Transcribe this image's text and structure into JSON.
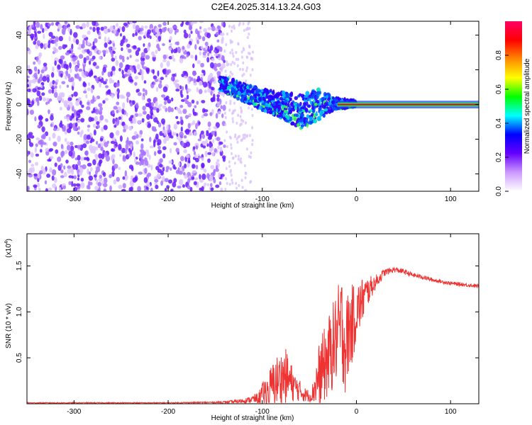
{
  "title": "C2E4.2025.314.13.24.G03",
  "colors": {
    "snr_line": "#ee3333",
    "background": "#ffffff",
    "axes": "#000000"
  },
  "chart_data": [
    {
      "type": "heatmap",
      "title": "C2E4.2025.314.13.24.G03",
      "xlabel": "Height of straight line (km)",
      "ylabel": "Frequency (Hz)",
      "xlim": [
        -350,
        130
      ],
      "ylim": [
        -50,
        48
      ],
      "xticks": [
        -300,
        -200,
        -100,
        0,
        100
      ],
      "xtick_labels": [
        "-300",
        "-200",
        "-100",
        "0",
        "100"
      ],
      "yticks": [
        -40,
        -20,
        0,
        20,
        40
      ],
      "ytick_labels": [
        "-40",
        "-20",
        "0",
        "20",
        "40"
      ],
      "noise_region_km": [
        -350,
        -140
      ],
      "signal_band": [
        {
          "x": -145,
          "fmin": 8,
          "fmax": 17
        },
        {
          "x": -120,
          "fmin": 2,
          "fmax": 12
        },
        {
          "x": -100,
          "fmin": -3,
          "fmax": 9
        },
        {
          "x": -80,
          "fmin": -8,
          "fmax": 7
        },
        {
          "x": -60,
          "fmin": -14,
          "fmax": 6
        },
        {
          "x": -40,
          "fmin": -9,
          "fmax": 9
        },
        {
          "x": -25,
          "fmin": -3,
          "fmax": 4
        },
        {
          "x": 0,
          "fmin": -1,
          "fmax": 2
        },
        {
          "x": 130,
          "fmin": -1,
          "fmax": 1
        }
      ],
      "carrier_frequency_hz": 0,
      "colorbar": {
        "label": "Normalized spectral amplitude",
        "range": [
          0,
          1
        ],
        "ticks": [
          0.0,
          0.2,
          0.4,
          0.6,
          0.8
        ],
        "tick_labels": [
          "0.0",
          "0.2",
          "0.4",
          "0.6",
          "0.8"
        ],
        "colormap": [
          "#ffffff",
          "#cc99ff",
          "#6600ff",
          "#0000ff",
          "#00ffff",
          "#00ff00",
          "#ffff00",
          "#ff8800",
          "#ff0000",
          "#ff0066"
        ]
      }
    },
    {
      "type": "line",
      "xlabel": "Height of straight line (km)",
      "ylabel": "SNR (10 * v/v)",
      "y_scale_label": "(x10",
      "y_scale_exponent": "4",
      "xlim": [
        -350,
        130
      ],
      "ylim": [
        0,
        1.85
      ],
      "xticks": [
        -300,
        -200,
        -100,
        0,
        100
      ],
      "xtick_labels": [
        "-300",
        "-200",
        "-100",
        "0",
        "100"
      ],
      "yticks": [
        0.5,
        1.0,
        1.5
      ],
      "ytick_labels": [
        "0.5",
        "1.0",
        "1.5"
      ],
      "series": [
        {
          "name": "SNR",
          "x": [
            -350,
            -300,
            -250,
            -200,
            -150,
            -130,
            -115,
            -105,
            -95,
            -85,
            -75,
            -65,
            -55,
            -48,
            -40,
            -30,
            -22,
            -15,
            -12,
            -8,
            -3,
            0,
            5,
            10,
            20,
            30,
            40,
            50,
            60,
            70,
            80,
            90,
            100,
            110,
            120,
            130
          ],
          "mean": [
            0.01,
            0.01,
            0.01,
            0.01,
            0.015,
            0.02,
            0.04,
            0.06,
            0.15,
            0.25,
            0.3,
            0.18,
            0.1,
            0.08,
            0.3,
            0.5,
            0.7,
            0.85,
            0.6,
            0.8,
            0.9,
            1.0,
            1.1,
            1.2,
            1.32,
            1.43,
            1.46,
            1.44,
            1.4,
            1.38,
            1.35,
            1.33,
            1.31,
            1.3,
            1.29,
            1.28
          ],
          "spread": [
            0.005,
            0.005,
            0.005,
            0.005,
            0.008,
            0.02,
            0.03,
            0.06,
            0.18,
            0.28,
            0.3,
            0.15,
            0.08,
            0.06,
            0.35,
            0.45,
            0.5,
            0.6,
            0.5,
            0.5,
            0.4,
            0.3,
            0.28,
            0.18,
            0.08,
            0.04,
            0.03,
            0.03,
            0.025,
            0.025,
            0.02,
            0.02,
            0.02,
            0.02,
            0.02,
            0.02
          ]
        }
      ]
    }
  ]
}
